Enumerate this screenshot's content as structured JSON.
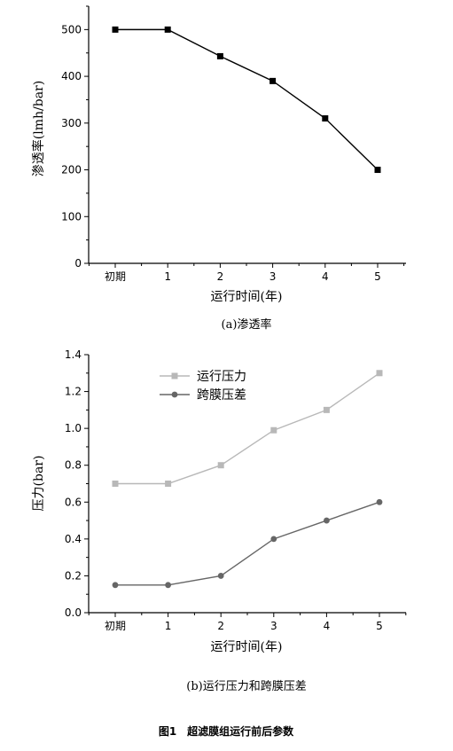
{
  "figure_caption": "图1　超滤膜组运行前后参数",
  "chart_data": [
    {
      "type": "line",
      "caption": "(a)渗透率",
      "xlabel": "运行时间(年)",
      "ylabel": "渗透率(lmh/bar)",
      "categories": [
        "初期",
        "1",
        "2",
        "3",
        "4",
        "5"
      ],
      "ylim": [
        0,
        550
      ],
      "yticks": [
        "0",
        "100",
        "200",
        "300",
        "400",
        "500"
      ],
      "legend": "none",
      "grid": false,
      "series": [
        {
          "values": [
            500,
            500,
            443,
            390,
            310,
            200
          ],
          "color": "#000000",
          "marker": "square"
        }
      ]
    },
    {
      "type": "line",
      "caption": "(b)运行压力和跨膜压差",
      "xlabel": "运行时间(年)",
      "ylabel": "压力(bar)",
      "categories": [
        "初期",
        "1",
        "2",
        "3",
        "4",
        "5"
      ],
      "ylim": [
        0,
        1.4
      ],
      "yticks": [
        "0.0",
        "0.2",
        "0.4",
        "0.6",
        "0.8",
        "1.0",
        "1.2",
        "1.4"
      ],
      "legend": "top-left",
      "grid": false,
      "series": [
        {
          "name": "运行压力",
          "values": [
            0.7,
            0.7,
            0.8,
            0.99,
            1.1,
            1.3
          ],
          "color": "#b8b8b8",
          "marker": "square"
        },
        {
          "name": "跨膜压差",
          "values": [
            0.15,
            0.15,
            0.2,
            0.4,
            0.5,
            0.6
          ],
          "color": "#666666",
          "marker": "circle"
        }
      ]
    }
  ]
}
